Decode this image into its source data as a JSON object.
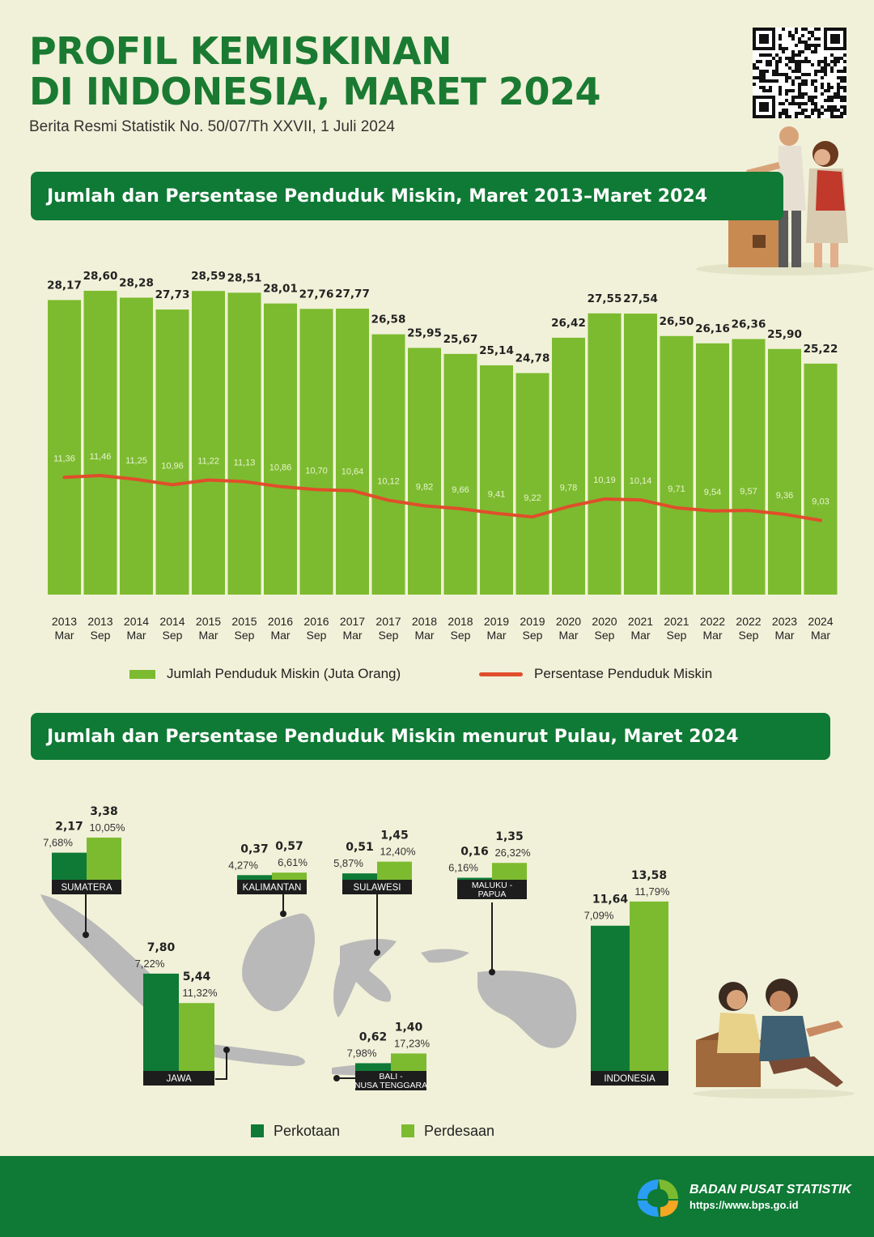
{
  "header": {
    "title_line1": "PROFIL KEMISKINAN",
    "title_line2": "DI INDONESIA, MARET 2024",
    "subtitle": "Berita Resmi Statistik No. 50/07/Th XXVII, 1 Juli 2024"
  },
  "section1": {
    "banner": "Jumlah dan Persentase Penduduk Miskin, Maret 2013–Maret 2024"
  },
  "section2": {
    "banner": "Jumlah dan Persentase Penduduk Miskin menurut Pulau, Maret 2024"
  },
  "colors": {
    "green_dark": "#0f7a35",
    "green_light": "#7cbb2f",
    "red_line": "#e04e2b",
    "background": "#f1f1d9"
  },
  "footer": {
    "org": "BADAN PUSAT STATISTIK",
    "url": "https://www.bps.go.id"
  },
  "chart_data": [
    {
      "type": "bar",
      "categories": [
        [
          "2013",
          "Mar"
        ],
        [
          "2013",
          "Sep"
        ],
        [
          "2014",
          "Mar"
        ],
        [
          "2014",
          "Sep"
        ],
        [
          "2015",
          "Mar"
        ],
        [
          "2015",
          "Sep"
        ],
        [
          "2016",
          "Mar"
        ],
        [
          "2016",
          "Sep"
        ],
        [
          "2017",
          "Mar"
        ],
        [
          "2017",
          "Sep"
        ],
        [
          "2018",
          "Mar"
        ],
        [
          "2018",
          "Sep"
        ],
        [
          "2019",
          "Mar"
        ],
        [
          "2019",
          "Sep"
        ],
        [
          "2020",
          "Mar"
        ],
        [
          "2020",
          "Sep"
        ],
        [
          "2021",
          "Mar"
        ],
        [
          "2021",
          "Sep"
        ],
        [
          "2022",
          "Mar"
        ],
        [
          "2022",
          "Sep"
        ],
        [
          "2023",
          "Mar"
        ],
        [
          "2024",
          "Mar"
        ]
      ],
      "series": [
        {
          "name": "Jumlah Penduduk Miskin (Juta Orang)",
          "values": [
            28.17,
            28.6,
            28.28,
            27.73,
            28.59,
            28.51,
            28.01,
            27.76,
            27.77,
            26.58,
            25.95,
            25.67,
            25.14,
            24.78,
            26.42,
            27.55,
            27.54,
            26.5,
            26.16,
            26.36,
            25.9,
            25.22
          ],
          "labels": [
            "28,17",
            "28,60",
            "28,28",
            "27,73",
            "28,59",
            "28,51",
            "28,01",
            "27,76",
            "27,77",
            "26,58",
            "25,95",
            "25,67",
            "25,14",
            "24,78",
            "26,42",
            "27,55",
            "27,54",
            "26,50",
            "26,16",
            "26,36",
            "25,90",
            "25,22"
          ]
        },
        {
          "name": "Persentase Penduduk Miskin",
          "values": [
            11.36,
            11.46,
            11.25,
            10.96,
            11.22,
            11.13,
            10.86,
            10.7,
            10.64,
            10.12,
            9.82,
            9.66,
            9.41,
            9.22,
            9.78,
            10.19,
            10.14,
            9.71,
            9.54,
            9.57,
            9.36,
            9.03
          ],
          "labels": [
            "11,36",
            "11,46",
            "11,25",
            "10,96",
            "11,22",
            "11,13",
            "10,86",
            "10,70",
            "10,64",
            "10,12",
            "9,82",
            "9,66",
            "9,41",
            "9,22",
            "9,78",
            "10,19",
            "10,14",
            "9,71",
            "9,54",
            "9,57",
            "9,36",
            "9,03"
          ]
        }
      ],
      "legend": "bottom"
    },
    {
      "type": "bar",
      "series_names": [
        "Perkotaan",
        "Perdesaan"
      ],
      "groups": [
        {
          "name": "SUMATERA",
          "perkotaan": {
            "jumlah": "2,17",
            "persen": "7,68%",
            "value": 2.17
          },
          "perdesaan": {
            "jumlah": "3,38",
            "persen": "10,05%",
            "value": 3.38
          }
        },
        {
          "name": "KALIMANTAN",
          "perkotaan": {
            "jumlah": "0,37",
            "persen": "4,27%",
            "value": 0.37
          },
          "perdesaan": {
            "jumlah": "0,57",
            "persen": "6,61%",
            "value": 0.57
          }
        },
        {
          "name": "SULAWESI",
          "perkotaan": {
            "jumlah": "0,51",
            "persen": "5,87%",
            "value": 0.51
          },
          "perdesaan": {
            "jumlah": "1,45",
            "persen": "12,40%",
            "value": 1.45
          }
        },
        {
          "name": "MALUKU - PAPUA",
          "perkotaan": {
            "jumlah": "0,16",
            "persen": "6,16%",
            "value": 0.16
          },
          "perdesaan": {
            "jumlah": "1,35",
            "persen": "26,32%",
            "value": 1.35
          }
        },
        {
          "name": "JAWA",
          "perkotaan": {
            "jumlah": "7,80",
            "persen": "7,22%",
            "value": 7.8
          },
          "perdesaan": {
            "jumlah": "5,44",
            "persen": "11,32%",
            "value": 5.44
          }
        },
        {
          "name": "BALI - NUSA TENGGARA",
          "perkotaan": {
            "jumlah": "0,62",
            "persen": "7,98%",
            "value": 0.62
          },
          "perdesaan": {
            "jumlah": "1,40",
            "persen": "17,23%",
            "value": 1.4
          }
        },
        {
          "name": "INDONESIA",
          "perkotaan": {
            "jumlah": "11,64",
            "persen": "7,09%",
            "value": 11.64
          },
          "perdesaan": {
            "jumlah": "13,58",
            "persen": "11,79%",
            "value": 13.58
          }
        }
      ],
      "legend": "bottom"
    }
  ]
}
